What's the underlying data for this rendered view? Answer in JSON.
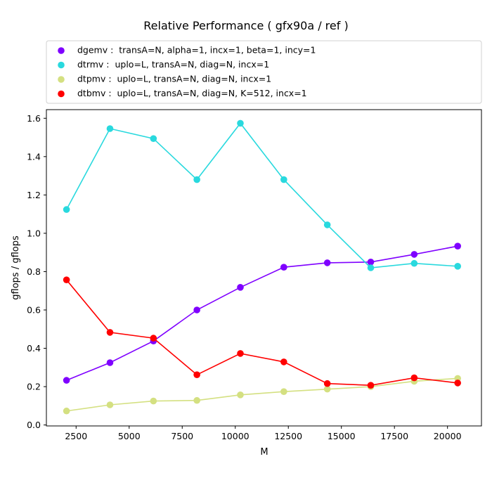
{
  "chart_data": {
    "type": "line",
    "title": "Relative Performance ( gfx90a /  ref )",
    "xlabel": "M",
    "ylabel": "gflops / gflops",
    "xlim": [
      1100,
      21600
    ],
    "ylim": [
      -0.005,
      1.645
    ],
    "xticks": [
      2500,
      5000,
      7500,
      10000,
      12500,
      15000,
      17500,
      20000
    ],
    "yticks": [
      0.0,
      0.2,
      0.4,
      0.6,
      0.8,
      1.0,
      1.2,
      1.4,
      1.6
    ],
    "grid": false,
    "legend_position": "top",
    "x": [
      2048,
      4096,
      6144,
      8192,
      10240,
      12288,
      14336,
      16384,
      18432,
      20480
    ],
    "series": [
      {
        "name": "dgemv :  transA=N, alpha=1, incx=1, beta=1, incy=1",
        "color": "#7f00ff",
        "values": [
          0.233,
          0.325,
          0.438,
          0.6,
          0.718,
          0.823,
          0.846,
          0.85,
          0.89,
          0.933
        ]
      },
      {
        "name": "dtrmv :  uplo=L, transA=N, diag=N, incx=1",
        "color": "#29d9de",
        "values": [
          1.124,
          1.546,
          1.494,
          1.28,
          1.574,
          1.28,
          1.044,
          0.82,
          0.843,
          0.828
        ]
      },
      {
        "name": "dtpmv :  uplo=L, transA=N, diag=N, incx=1",
        "color": "#d4e081",
        "values": [
          0.073,
          0.105,
          0.125,
          0.128,
          0.157,
          0.174,
          0.187,
          0.2,
          0.228,
          0.243
        ]
      },
      {
        "name": "dtbmv :  uplo=L, transA=N, diag=N, K=512, incx=1",
        "color": "#ff0000",
        "values": [
          0.757,
          0.483,
          0.453,
          0.262,
          0.373,
          0.329,
          0.216,
          0.207,
          0.246,
          0.219
        ]
      }
    ]
  }
}
